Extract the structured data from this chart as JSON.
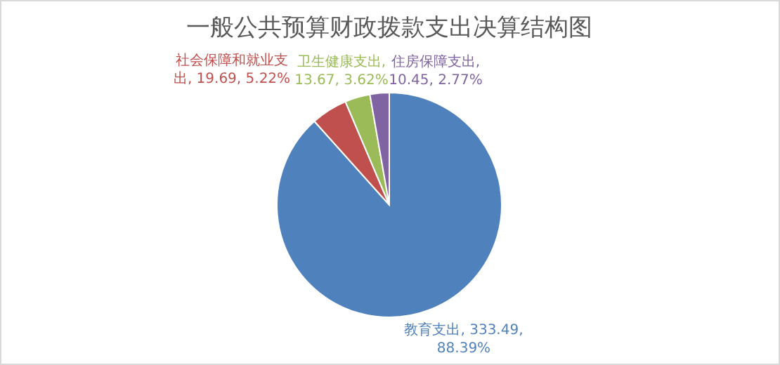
{
  "chart_data": {
    "type": "pie",
    "title": "一般公共预算财政拨款支出决算结构图",
    "categories": [
      "教育支出",
      "社会保障和就业支出",
      "卫生健康支出",
      "住房保障支出"
    ],
    "values": [
      333.49,
      19.69,
      13.67,
      10.45
    ],
    "value_labels": [
      ", 333.49, 88.39%",
      ", 19.69, 5.22%",
      ", 13.67, 3.62%",
      ", 10.45, 2.77%"
    ],
    "colors": [
      "#4f81bd",
      "#c0504d",
      "#9bbb59",
      "#8064a2"
    ],
    "legend": false
  }
}
